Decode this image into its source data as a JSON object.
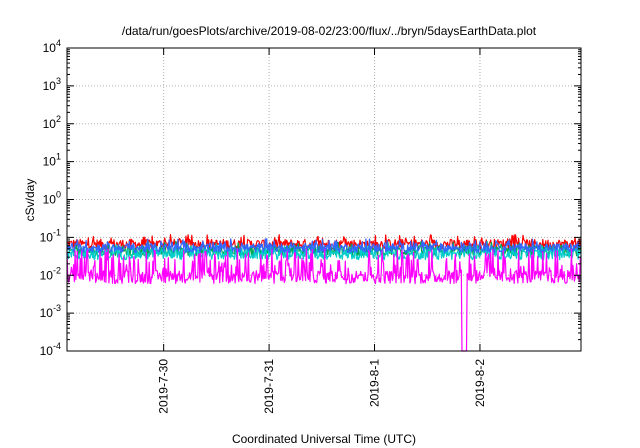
{
  "chart_data": {
    "type": "line",
    "title": "/data/run/goesPlots/archive/2019-08-02/23:00/flux/../bryn/5daysEarthData.plot",
    "xlabel": "Coordinated Universal Time (UTC)",
    "ylabel": "cSv/day",
    "yscale": "log",
    "ylim": [
      0.0001,
      10000
    ],
    "y_ticks": [
      {
        "value": 0.0001,
        "base": "10",
        "exp": "-4"
      },
      {
        "value": 0.001,
        "base": "10",
        "exp": "-3"
      },
      {
        "value": 0.01,
        "base": "10",
        "exp": "-2"
      },
      {
        "value": 0.1,
        "base": "10",
        "exp": "-1"
      },
      {
        "value": 1,
        "base": "10",
        "exp": "0"
      },
      {
        "value": 10,
        "base": "10",
        "exp": "1"
      },
      {
        "value": 100,
        "base": "10",
        "exp": "2"
      },
      {
        "value": 1000,
        "base": "10",
        "exp": "3"
      },
      {
        "value": 10000,
        "base": "10",
        "exp": "4"
      }
    ],
    "xlim": [
      "2019-07-29T02:00",
      "2019-08-02T23:00"
    ],
    "x_ticks": [
      "2019-7-30",
      "2019-7-31",
      "2019-8-1",
      "2019-8-2"
    ],
    "grid": true,
    "series": [
      {
        "color": "#ff0000",
        "typical_low": 0.03,
        "typical_high": 0.09
      },
      {
        "color": "#00a651",
        "typical_low": 0.02,
        "typical_high": 0.06
      },
      {
        "color": "#00cccc",
        "typical_low": 0.015,
        "typical_high": 0.05
      },
      {
        "color": "#3366ff",
        "typical_low": 0.025,
        "typical_high": 0.07
      },
      {
        "color": "#ff00ff",
        "typical_low": 0.006,
        "typical_high": 0.05,
        "dropout": "2019-08-01T20:30"
      }
    ]
  }
}
